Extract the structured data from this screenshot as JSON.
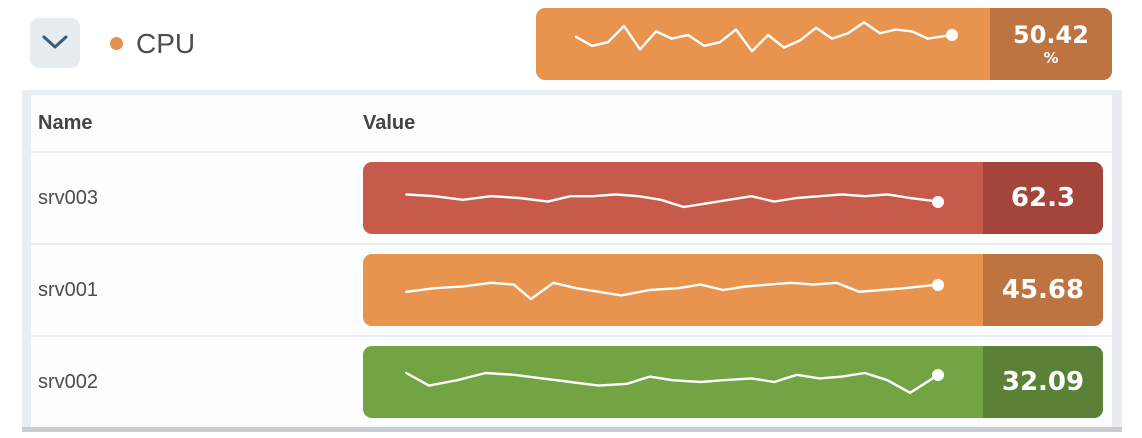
{
  "header": {
    "collapse_icon": "chevron-down",
    "series_label": "CPU",
    "series_dot_color": "#E8914E",
    "summary": {
      "value": "50.42",
      "unit": "%",
      "bar_color": "#E8944E",
      "value_box_color": "#BD7440",
      "line_color": "#FFFFFF",
      "sparkline": [
        [
          2,
          16
        ],
        [
          6,
          21
        ],
        [
          10,
          19
        ],
        [
          14,
          10
        ],
        [
          18,
          23
        ],
        [
          22,
          13
        ],
        [
          26,
          17
        ],
        [
          30,
          15
        ],
        [
          34,
          21
        ],
        [
          38,
          19
        ],
        [
          42,
          12
        ],
        [
          46,
          24
        ],
        [
          50,
          15
        ],
        [
          54,
          22
        ],
        [
          58,
          18
        ],
        [
          62,
          11
        ],
        [
          66,
          17
        ],
        [
          70,
          14
        ],
        [
          74,
          8
        ],
        [
          78,
          14
        ],
        [
          82,
          12
        ],
        [
          86,
          13
        ],
        [
          90,
          17
        ],
        [
          96,
          15
        ]
      ]
    }
  },
  "table": {
    "columns": [
      "Name",
      "Value"
    ],
    "rows": [
      {
        "name": "srv003",
        "value": "62.3",
        "bar_color": "#C75B4B",
        "value_box_color": "#A3453B",
        "line_color": "#FFFFFF",
        "sparkline": [
          [
            2,
            18
          ],
          [
            7,
            19
          ],
          [
            12,
            21
          ],
          [
            17,
            19
          ],
          [
            22,
            20
          ],
          [
            27,
            22
          ],
          [
            31,
            19
          ],
          [
            35,
            19
          ],
          [
            39,
            18
          ],
          [
            43,
            19
          ],
          [
            47,
            21
          ],
          [
            51,
            25
          ],
          [
            55,
            23
          ],
          [
            59,
            21
          ],
          [
            63,
            19
          ],
          [
            67,
            22
          ],
          [
            71,
            20
          ],
          [
            75,
            19
          ],
          [
            79,
            18
          ],
          [
            83,
            19
          ],
          [
            87,
            18
          ],
          [
            91,
            20
          ],
          [
            96,
            22
          ]
        ]
      },
      {
        "name": "srv001",
        "value": "45.68",
        "bar_color": "#E8944E",
        "value_box_color": "#BD7440",
        "line_color": "#FFFFFF",
        "sparkline": [
          [
            2,
            21
          ],
          [
            7,
            19
          ],
          [
            12,
            18
          ],
          [
            17,
            16
          ],
          [
            21,
            17
          ],
          [
            24,
            25
          ],
          [
            28,
            16
          ],
          [
            32,
            19
          ],
          [
            36,
            21
          ],
          [
            40,
            23
          ],
          [
            45,
            20
          ],
          [
            50,
            19
          ],
          [
            54,
            17
          ],
          [
            58,
            20
          ],
          [
            62,
            18
          ],
          [
            66,
            17
          ],
          [
            70,
            16
          ],
          [
            74,
            17
          ],
          [
            78,
            16
          ],
          [
            82,
            21
          ],
          [
            86,
            20
          ],
          [
            90,
            19
          ],
          [
            96,
            17
          ]
        ]
      },
      {
        "name": "srv002",
        "value": "32.09",
        "bar_color": "#72A443",
        "value_box_color": "#5A8136",
        "line_color": "#FFFFFF",
        "sparkline": [
          [
            2,
            15
          ],
          [
            6,
            22
          ],
          [
            11,
            19
          ],
          [
            16,
            15
          ],
          [
            21,
            16
          ],
          [
            26,
            18
          ],
          [
            31,
            20
          ],
          [
            36,
            22
          ],
          [
            41,
            21
          ],
          [
            45,
            17
          ],
          [
            49,
            19
          ],
          [
            54,
            20
          ],
          [
            58,
            19
          ],
          [
            63,
            18
          ],
          [
            67,
            20
          ],
          [
            71,
            16
          ],
          [
            75,
            18
          ],
          [
            79,
            17
          ],
          [
            83,
            15
          ],
          [
            87,
            19
          ],
          [
            91,
            26
          ],
          [
            96,
            16
          ]
        ]
      }
    ]
  },
  "colors": {
    "panel_background": "#E9EDF1",
    "row_background": "#FCFDFE",
    "collapse_button_background": "#E7ECF1",
    "chevron_stroke": "#3C5B77",
    "label_text": "#4D4D4D",
    "bottom_band": "#C9CED3"
  }
}
